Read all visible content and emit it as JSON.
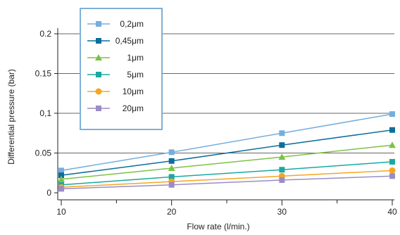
{
  "chart_data": {
    "type": "line",
    "title": "",
    "xlabel": "Flow rate (l/min.)",
    "ylabel": "Differential pressure (bar)",
    "x": [
      10,
      20,
      30,
      40
    ],
    "x_tick_labels": [
      "10",
      "20",
      "30",
      "40"
    ],
    "xlim": [
      10,
      40
    ],
    "ylim": [
      0,
      0.2
    ],
    "y_ticks": [
      0,
      0.05,
      0.1,
      0.15,
      0.2
    ],
    "y_tick_labels": [
      "0",
      "0.05",
      "0,1",
      "0.15",
      "0.2"
    ],
    "grid": "horizontal",
    "legend_position": "top-left",
    "series": [
      {
        "name": "0,2μm",
        "color": "#74aedd",
        "marker": "square",
        "values": [
          0.028,
          0.051,
          0.075,
          0.099
        ]
      },
      {
        "name": "0,45μm",
        "color": "#0d6e9c",
        "marker": "square",
        "values": [
          0.022,
          0.04,
          0.06,
          0.079
        ]
      },
      {
        "name": "1μm",
        "color": "#7cc245",
        "marker": "triangle",
        "values": [
          0.017,
          0.031,
          0.045,
          0.06
        ]
      },
      {
        "name": "5μm",
        "color": "#1aa9a0",
        "marker": "square",
        "values": [
          0.01,
          0.02,
          0.029,
          0.039
        ]
      },
      {
        "name": "10μm",
        "color": "#f5a623",
        "marker": "circle",
        "values": [
          0.007,
          0.014,
          0.021,
          0.028
        ]
      },
      {
        "name": "20μm",
        "color": "#9b8cc7",
        "marker": "square",
        "values": [
          0.005,
          0.01,
          0.016,
          0.021
        ]
      }
    ]
  }
}
